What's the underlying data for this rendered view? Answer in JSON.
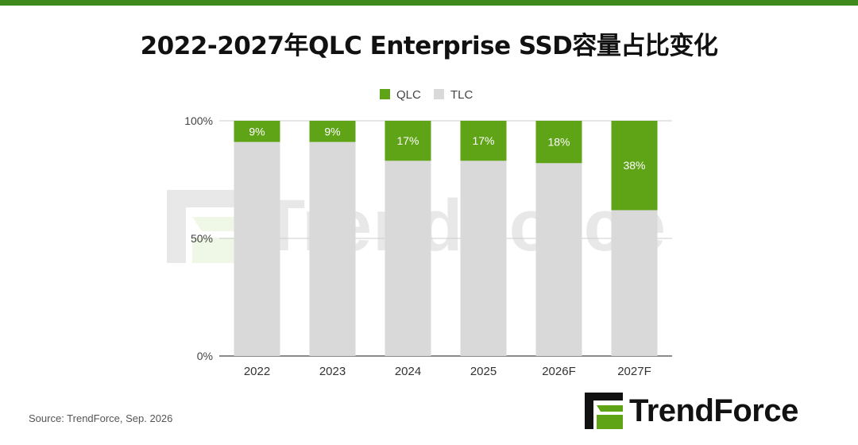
{
  "header": {
    "title": "2022-2027年QLC Enterprise SSD容量占比变化",
    "accent_color": "#3f8a1c"
  },
  "footer": {
    "source": "Source: TrendForce, Sep. 2026"
  },
  "logo": {
    "text": "TrendForce",
    "icon": "trendforce-logo-icon"
  },
  "watermark": {
    "text": "TrendForce",
    "icon": "trendforce-logo-icon"
  },
  "chart_data": {
    "type": "bar",
    "stacked": true,
    "categories": [
      "2022",
      "2023",
      "2024",
      "2025",
      "2026F",
      "2027F"
    ],
    "series": [
      {
        "name": "TLC",
        "values": [
          91,
          91,
          83,
          83,
          82,
          62
        ],
        "color": "#d9d9d9"
      },
      {
        "name": "QLC",
        "values": [
          9,
          9,
          17,
          17,
          18,
          38
        ],
        "color": "#5fa317",
        "labels": [
          "9%",
          "9%",
          "17%",
          "17%",
          "18%",
          "38%"
        ]
      }
    ],
    "legend_order": [
      "QLC",
      "TLC"
    ],
    "legend_position": "top",
    "ylim": [
      0,
      100
    ],
    "yticks": [
      0,
      50,
      100
    ],
    "ytick_labels": [
      "0%",
      "50%",
      "100%"
    ],
    "grid": true
  }
}
